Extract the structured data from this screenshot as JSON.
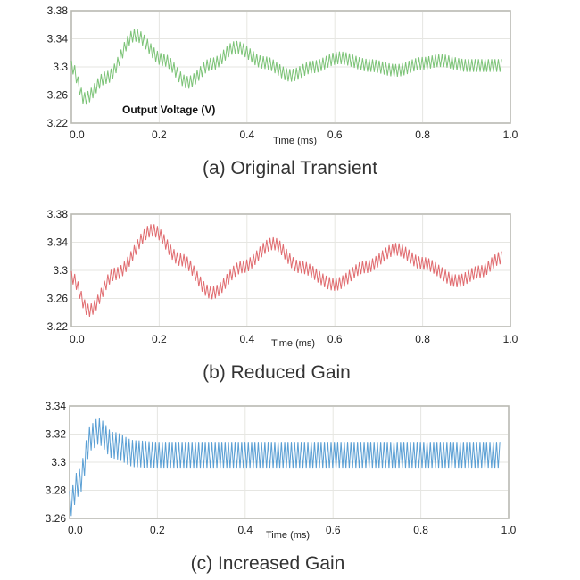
{
  "chart_data": [
    {
      "type": "line",
      "caption": "(a) Original Transient",
      "annotation": "Output Voltage (V)",
      "xlabel": "Time (ms)",
      "xlim": [
        0.0,
        1.0
      ],
      "ylim": [
        3.22,
        3.38
      ],
      "xticks": [
        "0.0",
        "0.2",
        "0.4",
        "0.6",
        "0.8",
        "1.0"
      ],
      "yticks": [
        "3.38",
        "3.34",
        "3.3",
        "3.26",
        "3.22"
      ],
      "grid": true,
      "color": "#7cc377",
      "series": [
        {
          "envelope_points": [
            [
              0.0,
              3.3
            ],
            [
              0.03,
              3.255
            ],
            [
              0.08,
              3.285
            ],
            [
              0.145,
              3.345
            ],
            [
              0.21,
              3.31
            ],
            [
              0.265,
              3.278
            ],
            [
              0.32,
              3.304
            ],
            [
              0.375,
              3.328
            ],
            [
              0.44,
              3.306
            ],
            [
              0.5,
              3.288
            ],
            [
              0.55,
              3.3
            ],
            [
              0.61,
              3.313
            ],
            [
              0.68,
              3.302
            ],
            [
              0.74,
              3.295
            ],
            [
              0.8,
              3.305
            ],
            [
              0.84,
              3.309
            ],
            [
              0.9,
              3.302
            ],
            [
              0.98,
              3.302
            ]
          ],
          "ripple_amplitude": 0.009
        }
      ]
    },
    {
      "type": "line",
      "caption": "(b) Reduced Gain",
      "xlabel": "Time (ms)",
      "xlim": [
        0.0,
        1.0
      ],
      "ylim": [
        3.22,
        3.38
      ],
      "xticks": [
        "0.0",
        "0.2",
        "0.4",
        "0.6",
        "0.8",
        "1.0"
      ],
      "yticks": [
        "3.38",
        "3.34",
        "3.3",
        "3.26",
        "3.22"
      ],
      "grid": true,
      "color": "#e06b6f",
      "series": [
        {
          "envelope_points": [
            [
              0.0,
              3.29
            ],
            [
              0.04,
              3.243
            ],
            [
              0.1,
              3.295
            ],
            [
              0.185,
              3.357
            ],
            [
              0.25,
              3.315
            ],
            [
              0.32,
              3.268
            ],
            [
              0.39,
              3.305
            ],
            [
              0.46,
              3.338
            ],
            [
              0.52,
              3.305
            ],
            [
              0.6,
              3.28
            ],
            [
              0.67,
              3.305
            ],
            [
              0.74,
              3.33
            ],
            [
              0.8,
              3.31
            ],
            [
              0.88,
              3.285
            ],
            [
              0.93,
              3.298
            ],
            [
              0.98,
              3.318
            ]
          ],
          "ripple_amplitude": 0.009
        }
      ]
    },
    {
      "type": "line",
      "caption": "(c) Increased Gain",
      "xlabel": "Time (ms)",
      "xlim": [
        0.0,
        1.0
      ],
      "ylim": [
        3.26,
        3.34
      ],
      "xticks": [
        "0.0",
        "0.2",
        "0.4",
        "0.6",
        "0.8",
        "1.0"
      ],
      "yticks": [
        "3.34",
        "3.32",
        "3.3",
        "3.28",
        "3.26"
      ],
      "grid": true,
      "color": "#5a9fd4",
      "series": [
        {
          "envelope_points": [
            [
              0.0,
              3.27
            ],
            [
              0.02,
              3.285
            ],
            [
              0.05,
              3.318
            ],
            [
              0.065,
              3.322
            ],
            [
              0.1,
              3.312
            ],
            [
              0.15,
              3.306
            ],
            [
              0.2,
              3.305
            ],
            [
              0.98,
              3.305
            ]
          ],
          "ripple_amplitude": 0.0095
        }
      ]
    }
  ]
}
